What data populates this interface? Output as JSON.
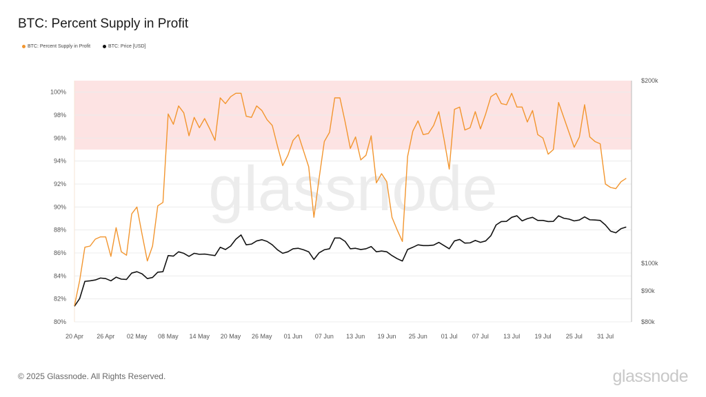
{
  "header": {
    "title": "BTC: Percent Supply in Profit"
  },
  "footer": {
    "copyright": "© 2025 Glassnode. All Rights Reserved.",
    "logo": "glassnode"
  },
  "watermark": "glassnode",
  "colors": {
    "supply": "#f2952e",
    "price": "#111111",
    "band": "#fde3e3",
    "grid": "#ececec"
  },
  "chart_data": {
    "type": "line",
    "title": "BTC: Percent Supply in Profit",
    "legend": [
      "BTC: Percent Supply in Profit",
      "BTC: Price [USD]"
    ],
    "legend_position": "top-left",
    "x_start": "2025-04-20",
    "x_step_days": 1,
    "x_ticks": [
      "20 Apr",
      "26 Apr",
      "02 May",
      "08 May",
      "14 May",
      "20 May",
      "26 May",
      "01 Jun",
      "07 Jun",
      "13 Jun",
      "19 Jun",
      "25 Jun",
      "01 Jul",
      "07 Jul",
      "13 Jul",
      "19 Jul",
      "25 Jul",
      "31 Jul"
    ],
    "x_tick_step_days": 6,
    "left_axis": {
      "ylim": [
        80,
        101
      ],
      "ticks": [
        80,
        82,
        84,
        86,
        88,
        90,
        92,
        94,
        96,
        98,
        100
      ],
      "tick_labels": [
        "80%",
        "82%",
        "84%",
        "86%",
        "88%",
        "90%",
        "92%",
        "94%",
        "96%",
        "98%",
        "100%"
      ]
    },
    "right_axis": {
      "scale": "log",
      "ylim": [
        80000,
        200000
      ],
      "ticks": [
        80000,
        90000,
        100000,
        200000
      ],
      "tick_labels": [
        "$80k",
        "$90k",
        "$100k",
        "$200k"
      ]
    },
    "highlight_band": {
      "from": 95,
      "to": 101
    },
    "grid": true,
    "series": [
      {
        "name": "BTC: Percent Supply in Profit",
        "axis": "left",
        "values": [
          81.4,
          83.6,
          86.5,
          86.6,
          87.2,
          87.4,
          87.4,
          85.7,
          88.2,
          86.1,
          85.8,
          89.4,
          90.0,
          87.6,
          85.3,
          86.6,
          90.1,
          90.4,
          98.1,
          97.2,
          98.8,
          98.2,
          96.2,
          97.8,
          96.9,
          97.7,
          96.8,
          95.8,
          99.5,
          99.0,
          99.6,
          99.9,
          99.9,
          97.9,
          97.8,
          98.8,
          98.4,
          97.6,
          97.1,
          95.3,
          93.6,
          94.5,
          95.8,
          96.3,
          94.9,
          93.5,
          89.1,
          92.5,
          95.7,
          96.5,
          99.5,
          99.5,
          97.4,
          95.1,
          96.1,
          94.1,
          94.5,
          96.2,
          92.1,
          92.9,
          92.2,
          89.1,
          88.0,
          87.0,
          94.4,
          96.6,
          97.5,
          96.3,
          96.4,
          97.1,
          98.3,
          95.9,
          93.3,
          98.5,
          98.7,
          96.7,
          96.9,
          98.3,
          96.8,
          98.1,
          99.6,
          99.9,
          99.0,
          98.9,
          99.9,
          98.7,
          98.7,
          97.4,
          98.4,
          96.3,
          96.0,
          94.6,
          95.0,
          99.1,
          97.8,
          96.5,
          95.2,
          96.1,
          98.9,
          96.1,
          95.7,
          95.5,
          92.0,
          91.7,
          91.6,
          92.2,
          92.5
        ]
      },
      {
        "name": "BTC: Price [USD]",
        "axis": "right",
        "values": [
          84900,
          87400,
          93300,
          93500,
          93800,
          94500,
          94300,
          93500,
          94800,
          94100,
          94000,
          96300,
          96800,
          96000,
          94300,
          94700,
          96600,
          96800,
          102900,
          102700,
          104400,
          103800,
          102600,
          103800,
          103400,
          103500,
          103200,
          102900,
          106200,
          105300,
          106700,
          109500,
          111300,
          107200,
          107500,
          108800,
          109300,
          108600,
          107200,
          105200,
          103800,
          104400,
          105600,
          105800,
          105200,
          104400,
          101400,
          104000,
          105200,
          105600,
          110000,
          110000,
          108600,
          105600,
          105800,
          105300,
          105600,
          106500,
          104400,
          104700,
          104400,
          102900,
          101700,
          100800,
          105300,
          106200,
          107200,
          106900,
          106900,
          107100,
          108200,
          106900,
          105600,
          108800,
          109400,
          107900,
          108000,
          109000,
          108200,
          108800,
          111000,
          115600,
          117100,
          117200,
          119000,
          119700,
          117400,
          118400,
          119000,
          117600,
          117600,
          117100,
          117200,
          119700,
          118600,
          118200,
          117400,
          117800,
          119200,
          117900,
          117800,
          117600,
          115600,
          112900,
          112200,
          114000,
          114700
        ]
      }
    ]
  }
}
